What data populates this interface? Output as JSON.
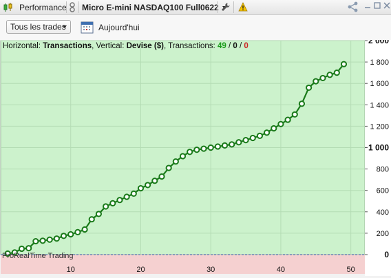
{
  "topbar": {
    "tab_label": "Performance",
    "instrument": "Micro E-mini NASDAQ100 Full0622"
  },
  "toolbar": {
    "filter_label": "Tous les trades",
    "date_label": "Aujourd'hui"
  },
  "chart_header": {
    "horizontal_prefix": "Horizontal: ",
    "horizontal_value": "Transactions",
    "vertical_prefix": ", Vertical: ",
    "vertical_value": "Devise ($)",
    "count_prefix": ", Transactions: ",
    "win_count": "49",
    "slash1": " / ",
    "even_count": "0",
    "slash2": " / ",
    "loss_count": "0"
  },
  "watermark": "ProRealTime Trading",
  "colors": {
    "positive_bg": "#ccf2cc",
    "negative_bg": "#f5d0d0",
    "line": "#1a7a1a",
    "win": "#1a9a1a",
    "loss": "#cc2222"
  },
  "chart_data": {
    "type": "line",
    "xlabel": "",
    "ylabel": "",
    "xlim": [
      0,
      52
    ],
    "ylim": [
      -180,
      2000
    ],
    "x_ticks": [
      10,
      20,
      30,
      40,
      50
    ],
    "y_ticks": [
      "2 000",
      "1 800",
      "1 600",
      "1 400",
      "1 200",
      "1 000",
      "800",
      "600",
      "400",
      "200",
      "0"
    ],
    "y_tick_values": [
      2000,
      1800,
      1600,
      1400,
      1200,
      1000,
      800,
      600,
      400,
      200,
      0
    ],
    "x": [
      1,
      2,
      3,
      4,
      5,
      6,
      7,
      8,
      9,
      10,
      11,
      12,
      13,
      14,
      15,
      16,
      17,
      18,
      19,
      20,
      21,
      22,
      23,
      24,
      25,
      26,
      27,
      28,
      29,
      30,
      31,
      32,
      33,
      34,
      35,
      36,
      37,
      38,
      39,
      40,
      41,
      42,
      43,
      44,
      45,
      46,
      47,
      48,
      49
    ],
    "series": [
      {
        "values": [
          10,
          20,
          55,
          60,
          125,
          130,
          140,
          150,
          175,
          190,
          210,
          235,
          330,
          380,
          450,
          480,
          510,
          540,
          570,
          620,
          650,
          690,
          730,
          810,
          870,
          920,
          960,
          980,
          990,
          1000,
          1010,
          1020,
          1030,
          1050,
          1070,
          1090,
          1110,
          1140,
          1180,
          1220,
          1260,
          1310,
          1410,
          1560,
          1620,
          1650,
          1680,
          1700,
          1780
        ]
      }
    ]
  }
}
